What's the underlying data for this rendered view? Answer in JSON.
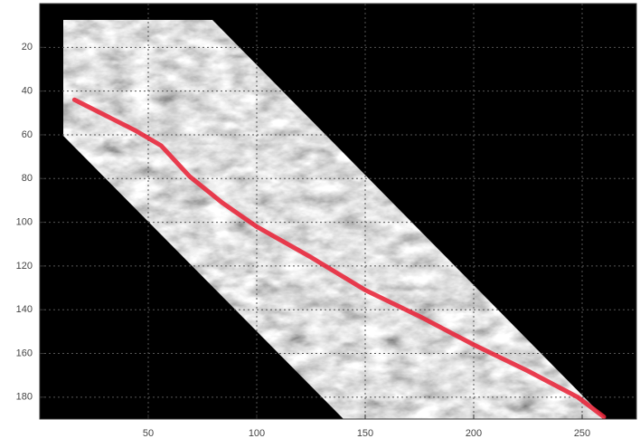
{
  "chart_data": {
    "type": "line",
    "x": [
      16,
      44,
      56,
      69,
      84,
      100,
      125,
      150,
      175,
      200,
      225,
      248,
      260
    ],
    "series": [
      {
        "color": "#e8283c",
        "values": [
          44,
          58,
          65,
          79,
          91,
          102,
          116,
          131,
          143,
          156,
          168,
          180,
          189
        ]
      }
    ],
    "xlim": [
      0,
      275
    ],
    "ylim": [
      0,
      190
    ],
    "yreverse": true,
    "xticks": [
      50,
      100,
      150,
      200,
      250
    ],
    "yticks": [
      20,
      40,
      60,
      80,
      100,
      120,
      140,
      160,
      180
    ],
    "grid": true
  }
}
